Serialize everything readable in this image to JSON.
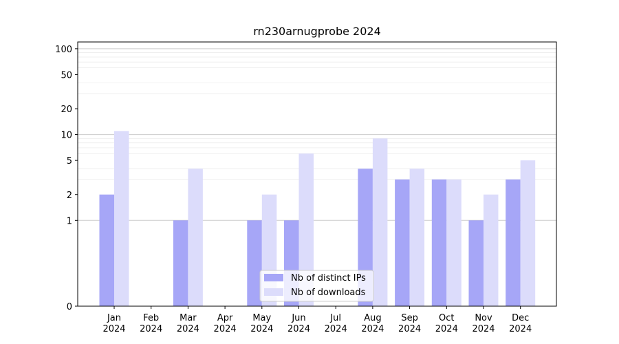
{
  "chart_data": {
    "type": "bar",
    "title": "rn230arnugprobe 2024",
    "xlabel": "",
    "ylabel": "",
    "y_scale": "symlog",
    "ylim": [
      0,
      120
    ],
    "y_ticks": [
      0,
      1,
      2,
      5,
      10,
      20,
      50,
      100
    ],
    "grid": "horizontal",
    "legend_position": "bottom-center",
    "categories": [
      [
        "Jan",
        "2024"
      ],
      [
        "Feb",
        "2024"
      ],
      [
        "Mar",
        "2024"
      ],
      [
        "Apr",
        "2024"
      ],
      [
        "May",
        "2024"
      ],
      [
        "Jun",
        "2024"
      ],
      [
        "Jul",
        "2024"
      ],
      [
        "Aug",
        "2024"
      ],
      [
        "Sep",
        "2024"
      ],
      [
        "Oct",
        "2024"
      ],
      [
        "Nov",
        "2024"
      ],
      [
        "Dec",
        "2024"
      ]
    ],
    "series": [
      {
        "name": "Nb of distinct IPs",
        "color": "#a6a6f7",
        "values": [
          2,
          0,
          1,
          0,
          1,
          1,
          0,
          4,
          3,
          3,
          1,
          3
        ]
      },
      {
        "name": "Nb of downloads",
        "color": "#dcdcfb",
        "values": [
          11,
          0,
          4,
          0,
          2,
          6,
          0,
          9,
          4,
          3,
          2,
          5
        ]
      }
    ]
  }
}
